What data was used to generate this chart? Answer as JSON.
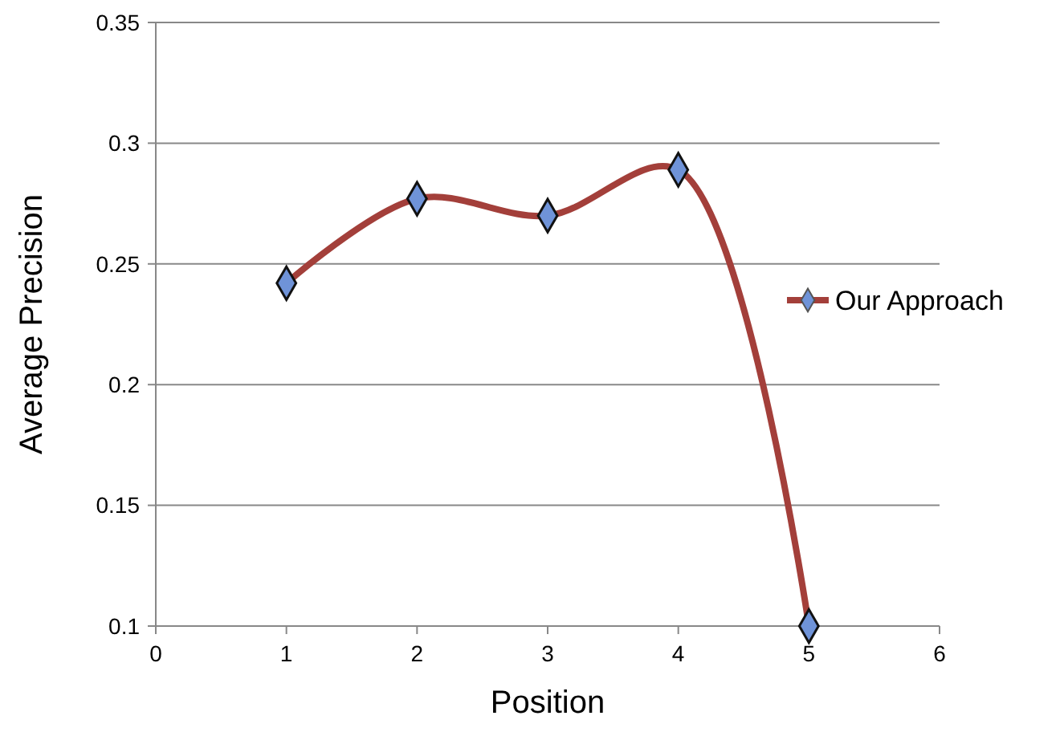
{
  "chart_data": {
    "type": "line",
    "xlabel": "Position",
    "ylabel": "Average Precision",
    "x": [
      1,
      2,
      3,
      4,
      5
    ],
    "series": [
      {
        "name": "Our Approach",
        "color": "#a33f3a",
        "values": [
          0.242,
          0.277,
          0.27,
          0.289,
          0.1
        ]
      }
    ],
    "xlim": [
      0,
      6
    ],
    "xticks": [
      0,
      1,
      2,
      3,
      4,
      5,
      6
    ],
    "ylim": [
      0.1,
      0.35
    ],
    "yticks": [
      0.1,
      0.15,
      0.2,
      0.25,
      0.3,
      0.35
    ],
    "grid": "y",
    "legend": "right",
    "marker": "diamond",
    "line_style": "solid"
  }
}
